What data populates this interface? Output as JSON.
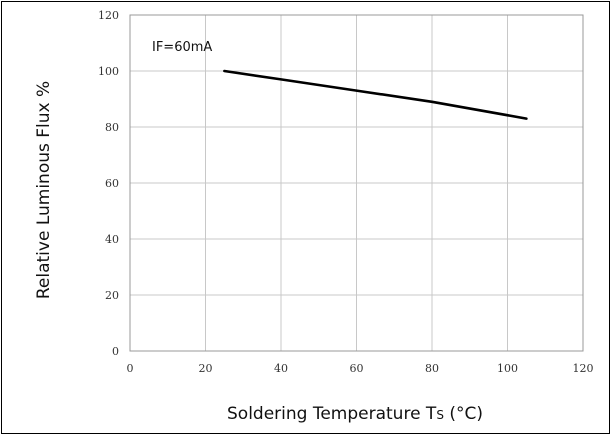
{
  "chart_data": {
    "type": "line",
    "xlabel": "Soldering Temperature T",
    "xlabel_subscript": "S",
    "xlabel_suffix": " (°C)",
    "ylabel": "Relative Luminous Flux %",
    "xlim": [
      0,
      120
    ],
    "ylim": [
      0,
      120
    ],
    "x_ticks": [
      "0",
      "20",
      "40",
      "60",
      "80",
      "100",
      "120"
    ],
    "y_ticks": [
      "0",
      "20",
      "40",
      "60",
      "80",
      "100",
      "120"
    ],
    "grid": true,
    "annotation": "IF=60mA",
    "series": [
      {
        "x": [
          25,
          40,
          60,
          80,
          105
        ],
        "y": [
          100,
          97,
          93,
          89,
          83
        ],
        "color": "#000000"
      }
    ]
  }
}
